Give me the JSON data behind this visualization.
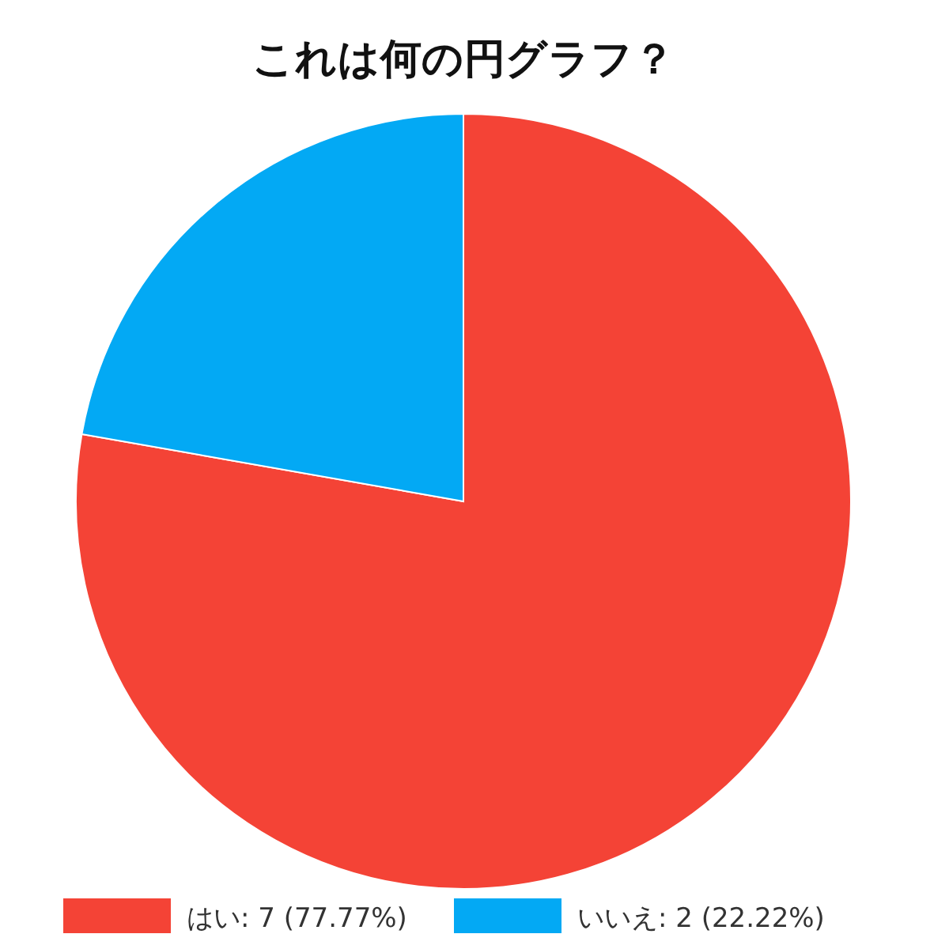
{
  "chart_data": {
    "type": "pie",
    "title": "これは何の円グラフ？",
    "categories": [
      "はい",
      "いいえ"
    ],
    "values": [
      7,
      2
    ],
    "value_labels": [
      "7 (77.77%)",
      "2 (22.22%)"
    ],
    "colors": [
      "#f44336",
      "#03a9f4"
    ],
    "legend": "bottom"
  }
}
